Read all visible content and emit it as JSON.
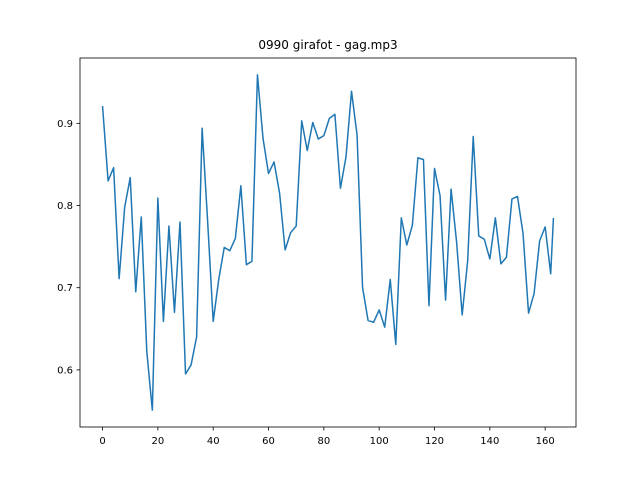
{
  "chart_data": {
    "type": "line",
    "title": "0990 girafot - gag.mp3",
    "xlabel": "",
    "ylabel": "",
    "xlim": [
      -8.15,
      171.15
    ],
    "ylim": [
      0.5305,
      0.9795
    ],
    "grid": false,
    "xticks": [
      0,
      20,
      40,
      60,
      80,
      100,
      120,
      140,
      160
    ],
    "yticks": [
      0.6,
      0.7,
      0.8,
      0.9
    ],
    "ytick_labels": [
      "0.6",
      "0.7",
      "0.8",
      "0.9"
    ],
    "series": [
      {
        "color": "#1f77b4",
        "x": [
          0,
          2,
          4,
          6,
          8,
          10,
          12,
          14,
          16,
          18,
          20,
          22,
          24,
          26,
          28,
          30,
          32,
          34,
          36,
          38,
          40,
          42,
          44,
          46,
          48,
          50,
          52,
          54,
          56,
          58,
          60,
          62,
          64,
          66,
          68,
          70,
          72,
          74,
          76,
          78,
          80,
          82,
          84,
          86,
          88,
          90,
          92,
          94,
          96,
          98,
          100,
          102,
          104,
          106,
          108,
          110,
          112,
          114,
          116,
          118,
          120,
          122,
          124,
          126,
          128,
          130,
          132,
          134,
          136,
          138,
          140,
          142,
          144,
          146,
          148,
          150,
          152,
          154,
          156,
          158,
          160,
          162,
          163
        ],
        "y": [
          0.921,
          0.83,
          0.846,
          0.711,
          0.798,
          0.834,
          0.695,
          0.786,
          0.622,
          0.551,
          0.809,
          0.659,
          0.775,
          0.67,
          0.78,
          0.595,
          0.606,
          0.64,
          0.894,
          0.78,
          0.659,
          0.71,
          0.749,
          0.745,
          0.76,
          0.824,
          0.728,
          0.732,
          0.959,
          0.882,
          0.839,
          0.853,
          0.815,
          0.746,
          0.767,
          0.775,
          0.903,
          0.867,
          0.901,
          0.881,
          0.885,
          0.906,
          0.911,
          0.821,
          0.859,
          0.939,
          0.886,
          0.7,
          0.66,
          0.658,
          0.673,
          0.652,
          0.71,
          0.631,
          0.785,
          0.752,
          0.776,
          0.858,
          0.856,
          0.678,
          0.845,
          0.812,
          0.685,
          0.82,
          0.755,
          0.667,
          0.733,
          0.884,
          0.763,
          0.759,
          0.735,
          0.785,
          0.729,
          0.737,
          0.808,
          0.811,
          0.766,
          0.669,
          0.693,
          0.757,
          0.774,
          0.717,
          0.785
        ]
      }
    ]
  }
}
